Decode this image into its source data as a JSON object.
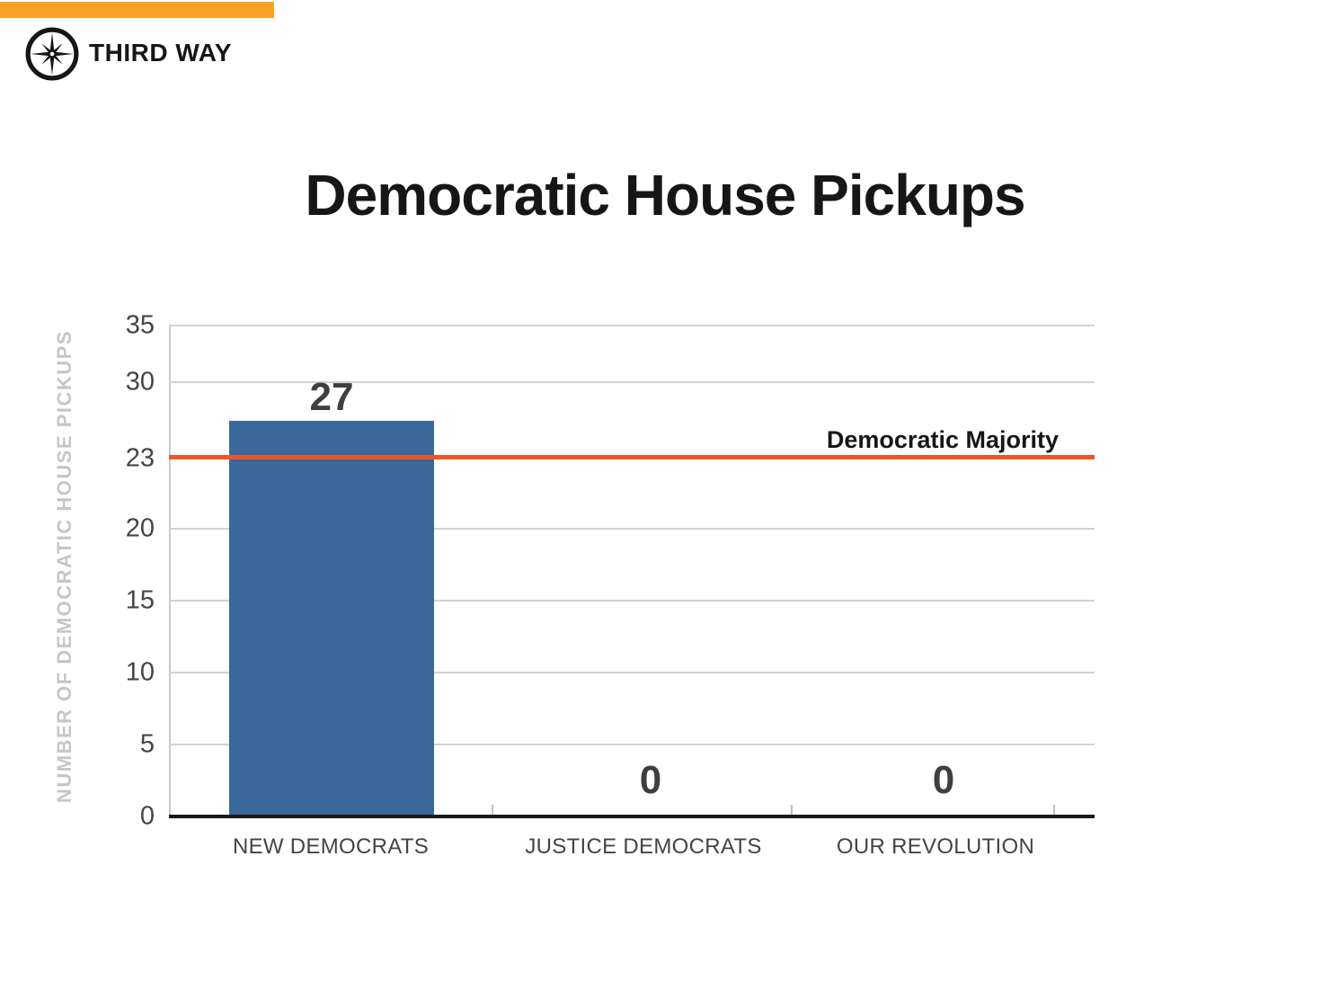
{
  "brand": {
    "name": "THIRD WAY",
    "logo_icon": "compass-star-icon",
    "accent_bar_color": "#FBA226"
  },
  "chart_data": {
    "type": "bar",
    "title": "Democratic House Pickups",
    "xlabel": "",
    "ylabel": "NUMBER OF DEMOCRATIC HOUSE PICKUPS",
    "categories": [
      "NEW DEMOCRATS",
      "JUSTICE DEMOCRATS",
      "OUR REVOLUTION"
    ],
    "values": [
      27,
      0,
      0
    ],
    "value_labels": [
      "27",
      "0",
      "0"
    ],
    "y_ticks": [
      "35",
      "30",
      "23",
      "20",
      "15",
      "10",
      "5",
      "0"
    ],
    "ylim": [
      0,
      35
    ],
    "grid": true,
    "legend_position": "none",
    "bar_color": "#3A689B",
    "reference_line": {
      "label": "Democratic Majority",
      "value": 23,
      "color": "#E8572B"
    }
  }
}
